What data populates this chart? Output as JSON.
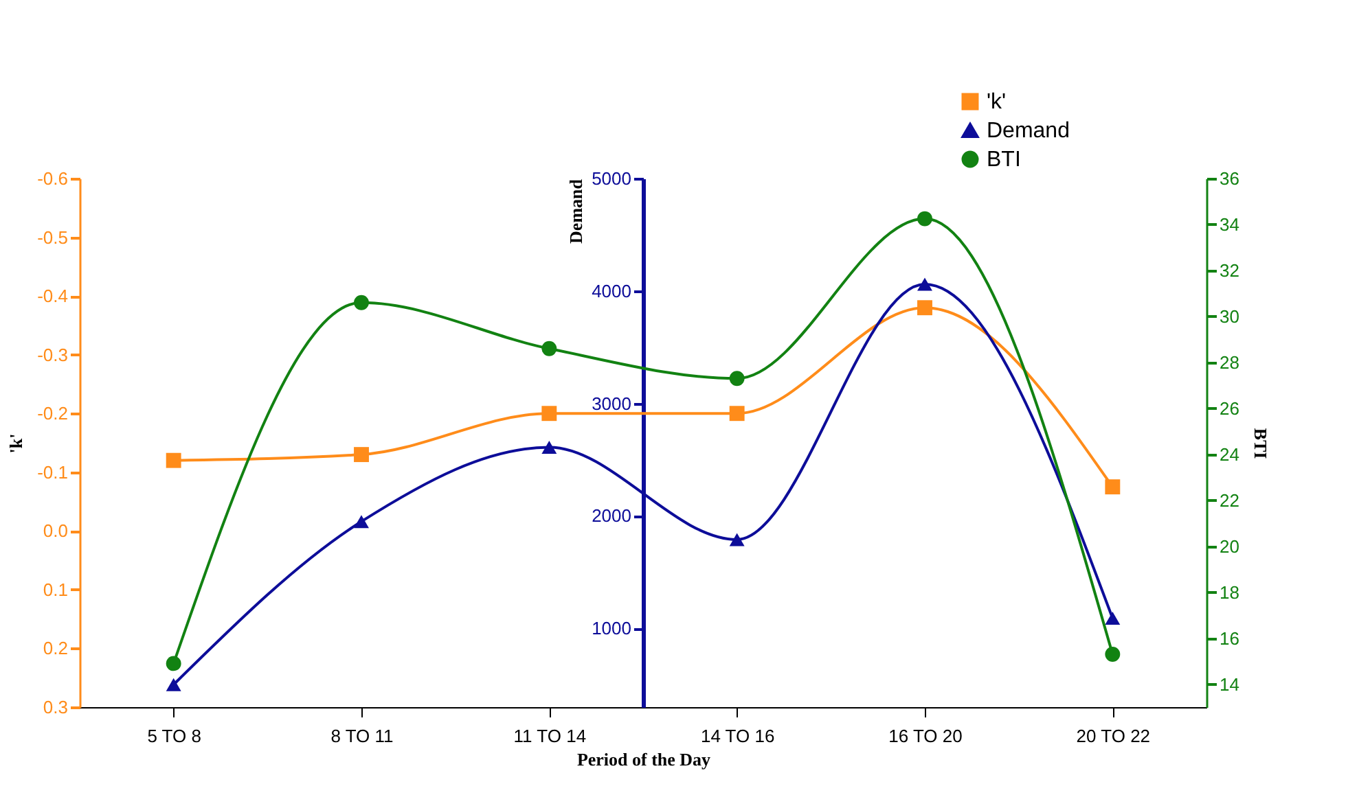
{
  "chart_data": {
    "type": "line",
    "xlabel": "Period of the Day",
    "ylabel": "'k'",
    "y2label": "Demand",
    "y3label": "BTI",
    "categories": [
      "5 TO 8",
      "8 TO 11",
      "11 TO 14",
      "14 TO 16",
      "16 TO 20",
      "20 TO 22"
    ],
    "series": [
      {
        "name": "'k'",
        "color": "#ff8c1a",
        "marker": "square",
        "values": [
          -0.12,
          -0.13,
          -0.2,
          -0.2,
          -0.38,
          -0.075
        ]
      },
      {
        "name": "Demand",
        "color": "#0d0d99",
        "marker": "triangle",
        "axis": "y2",
        "values": [
          500,
          1950,
          2610,
          1790,
          4060,
          1090
        ]
      },
      {
        "name": "BTI",
        "color": "#128212",
        "marker": "circle",
        "axis": "y3",
        "values": [
          14.9,
          30.6,
          28.6,
          27.3,
          34.25,
          15.3
        ]
      }
    ],
    "ylim": [
      0.3,
      -0.6
    ],
    "yticks": [
      -0.6,
      -0.5,
      -0.4,
      -0.3,
      -0.2,
      -0.1,
      {
        "value": 0,
        "label": "0.0"
      },
      0.1,
      0.2,
      0.3
    ],
    "y2lim": [
      300,
      5000
    ],
    "y2ticks": [
      1000,
      2000,
      3000,
      4000,
      5000
    ],
    "y3lim": [
      13,
      36
    ],
    "y3ticks": [
      14,
      16,
      18,
      20,
      22,
      24,
      26,
      28,
      30,
      32,
      34,
      36
    ],
    "grid": false,
    "legend": "top right",
    "line_style": "solid"
  }
}
